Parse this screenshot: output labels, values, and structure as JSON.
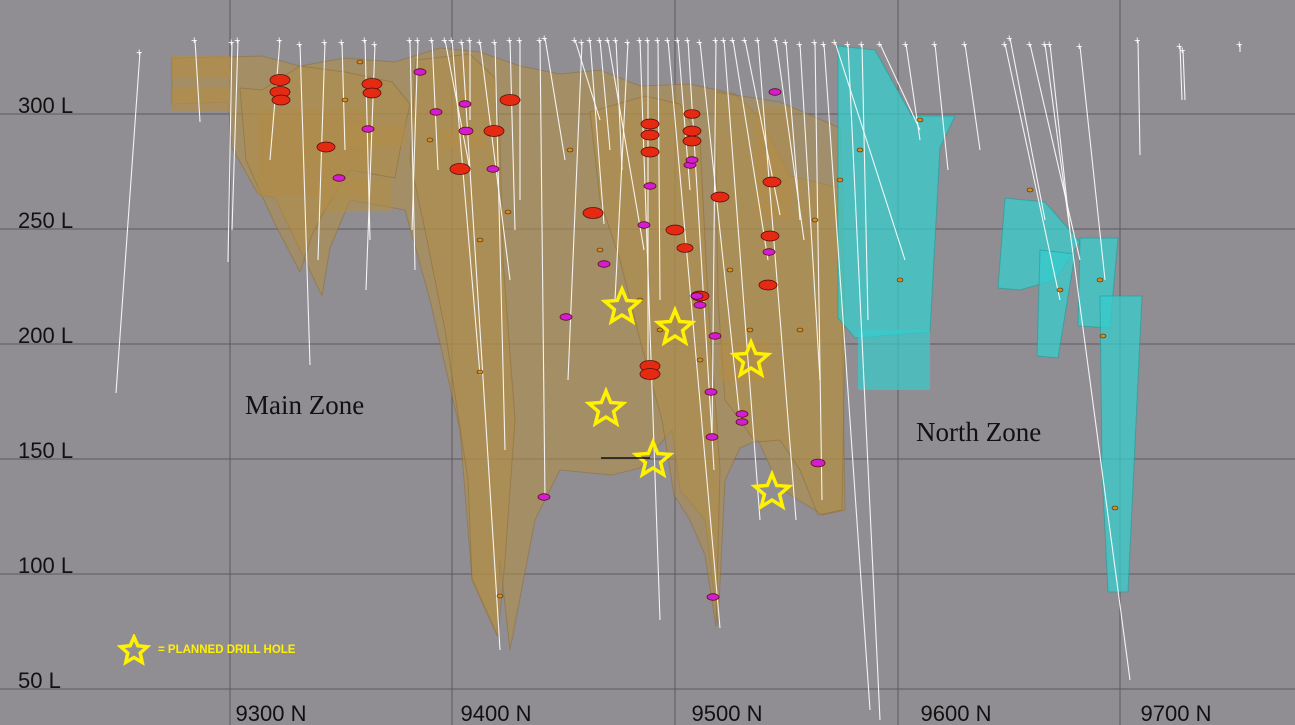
{
  "section": {
    "elevation_labels": [
      "300 L",
      "250 L",
      "200 L",
      "150 L",
      "100 L",
      "50 L"
    ],
    "northing_labels": [
      "9300 N",
      "9400 N",
      "9500 N",
      "9600 N",
      "9700 N"
    ],
    "zones": {
      "main": "Main Zone",
      "north": "North Zone"
    },
    "legend": {
      "text": "= PLANNED DRILL HOLE",
      "icon": "star-icon"
    }
  },
  "colors": {
    "background": "#918e93",
    "grid": "#5c5a5e",
    "main_zone": "#b08d48",
    "north_zone": "#37cccc",
    "drill_trace": "#ffffff",
    "intercept_high": "#e62a12",
    "intercept_mid": "#d21ed2",
    "planned_star": "#fff200"
  }
}
